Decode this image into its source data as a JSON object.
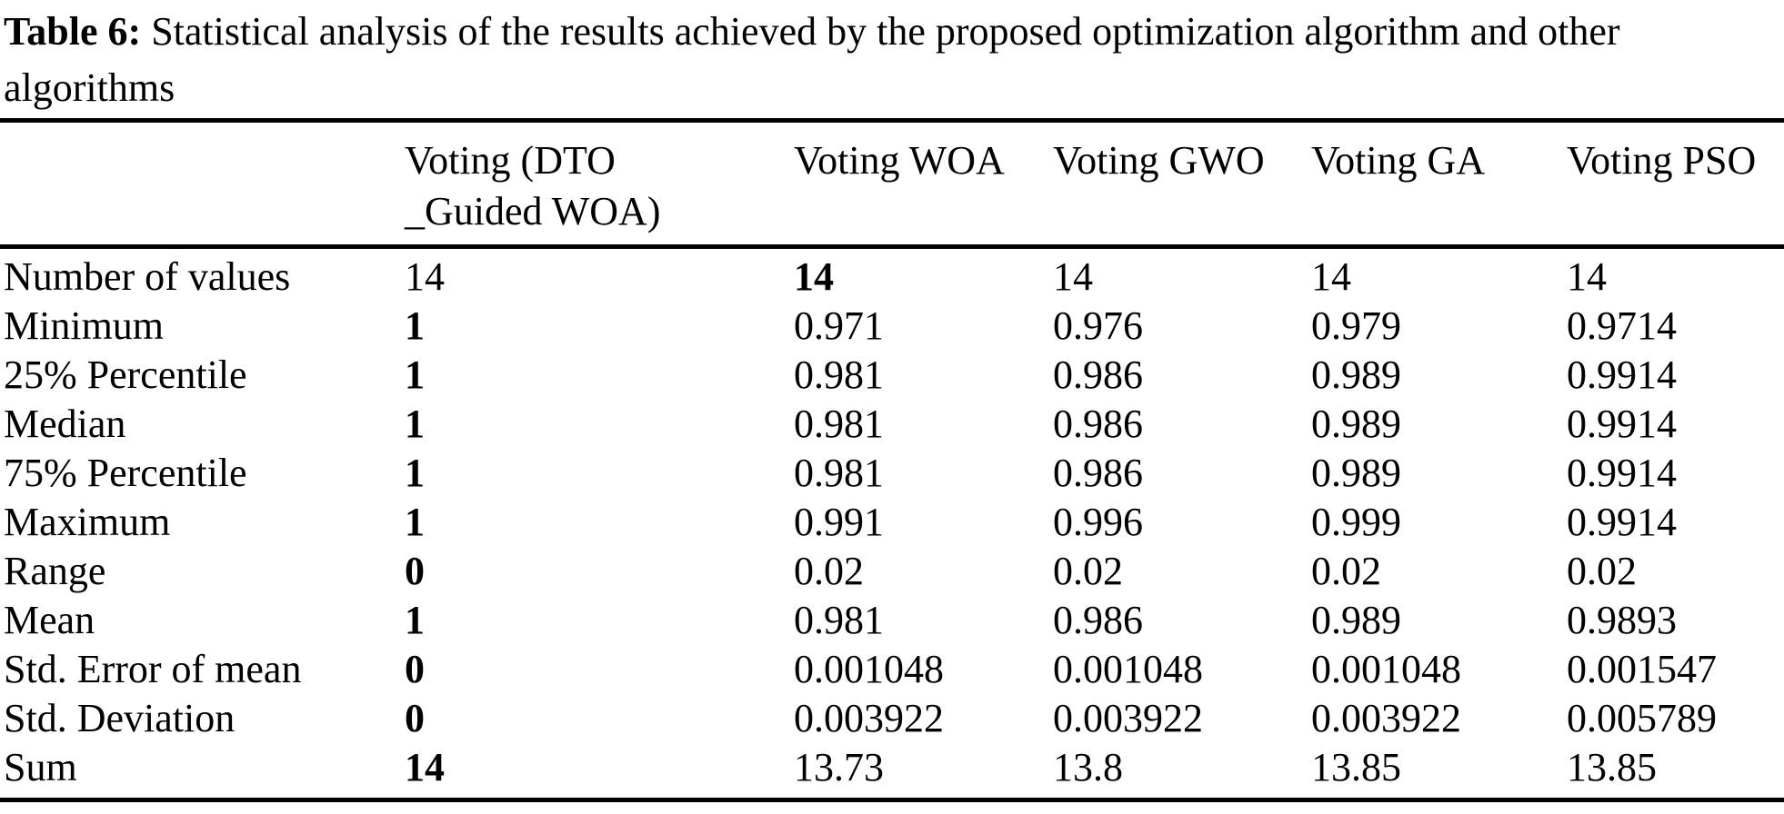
{
  "caption": {
    "label": "Table 6:",
    "text": " Statistical analysis of the results achieved by the proposed optimization algorithm and other\nalgorithms"
  },
  "colors": {
    "text": "#000000",
    "background": "#ffffff",
    "rule": "#000000"
  },
  "table": {
    "columns": [
      "",
      "Voting (DTO\n_Guided WOA)",
      "Voting WOA",
      "Voting GWO",
      "Voting GA",
      "Voting PSO"
    ],
    "rows": [
      {
        "label": "Number of values",
        "values": [
          "14",
          "14",
          "14",
          "14",
          "14"
        ],
        "bold": [
          false,
          true,
          false,
          false,
          false
        ]
      },
      {
        "label": "Minimum",
        "values": [
          "1",
          "0.971",
          "0.976",
          "0.979",
          "0.9714"
        ],
        "bold": [
          true,
          false,
          false,
          false,
          false
        ]
      },
      {
        "label": "25% Percentile",
        "values": [
          "1",
          "0.981",
          "0.986",
          "0.989",
          "0.9914"
        ],
        "bold": [
          true,
          false,
          false,
          false,
          false
        ]
      },
      {
        "label": "Median",
        "values": [
          "1",
          "0.981",
          "0.986",
          "0.989",
          "0.9914"
        ],
        "bold": [
          true,
          false,
          false,
          false,
          false
        ]
      },
      {
        "label": "75% Percentile",
        "values": [
          "1",
          "0.981",
          "0.986",
          "0.989",
          "0.9914"
        ],
        "bold": [
          true,
          false,
          false,
          false,
          false
        ]
      },
      {
        "label": "Maximum",
        "values": [
          "1",
          "0.991",
          "0.996",
          "0.999",
          "0.9914"
        ],
        "bold": [
          true,
          false,
          false,
          false,
          false
        ]
      },
      {
        "label": "Range",
        "values": [
          "0",
          "0.02",
          "0.02",
          "0.02",
          "0.02"
        ],
        "bold": [
          true,
          false,
          false,
          false,
          false
        ]
      },
      {
        "label": "Mean",
        "values": [
          "1",
          "0.981",
          "0.986",
          "0.989",
          "0.9893"
        ],
        "bold": [
          true,
          false,
          false,
          false,
          false
        ]
      },
      {
        "label": "Std. Error of mean",
        "values": [
          "0",
          "0.001048",
          "0.001048",
          "0.001048",
          "0.001547"
        ],
        "bold": [
          true,
          false,
          false,
          false,
          false
        ]
      },
      {
        "label": "Std. Deviation",
        "values": [
          "0",
          "0.003922",
          "0.003922",
          "0.003922",
          "0.005789"
        ],
        "bold": [
          true,
          false,
          false,
          false,
          false
        ]
      },
      {
        "label": "Sum",
        "values": [
          "14",
          "13.73",
          "13.8",
          "13.85",
          "13.85"
        ],
        "bold": [
          true,
          false,
          false,
          false,
          false
        ]
      }
    ]
  }
}
